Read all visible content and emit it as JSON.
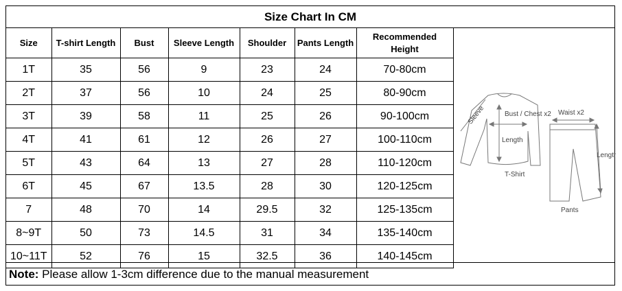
{
  "title": "Size Chart In CM",
  "headers": [
    "Size",
    "T-shirt Length",
    "Bust",
    "Sleeve Length",
    "Shoulder",
    "Pants Length",
    "Recommended Height"
  ],
  "rows": [
    [
      "1T",
      "35",
      "56",
      "9",
      "23",
      "24",
      "70-80cm"
    ],
    [
      "2T",
      "37",
      "56",
      "10",
      "24",
      "25",
      "80-90cm"
    ],
    [
      "3T",
      "39",
      "58",
      "11",
      "25",
      "26",
      "90-100cm"
    ],
    [
      "4T",
      "41",
      "61",
      "12",
      "26",
      "27",
      "100-110cm"
    ],
    [
      "5T",
      "43",
      "64",
      "13",
      "27",
      "28",
      "110-120cm"
    ],
    [
      "6T",
      "45",
      "67",
      "13.5",
      "28",
      "30",
      "120-125cm"
    ],
    [
      "7",
      "48",
      "70",
      "14",
      "29.5",
      "32",
      "125-135cm"
    ],
    [
      "8~9T",
      "50",
      "73",
      "14.5",
      "31",
      "34",
      "135-140cm"
    ],
    [
      "10~11T",
      "52",
      "76",
      "15",
      "32.5",
      "36",
      "140-145cm"
    ]
  ],
  "figure": {
    "sleeve": "Sleeve",
    "bust": "Bust / Chest x2",
    "shirt_length": "Length",
    "tshirt": "T-Shirt",
    "waist": "Waist x2",
    "pants_length": "Length",
    "pants": "Pants"
  },
  "note": {
    "label": "Note:",
    "text": " Please allow 1-3cm difference due to the manual measurement"
  }
}
